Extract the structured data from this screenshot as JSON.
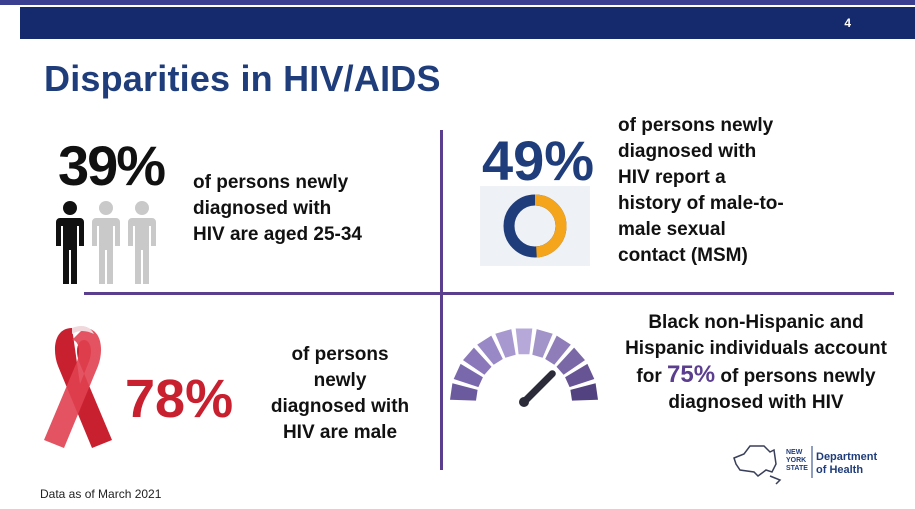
{
  "slide": {
    "number": "4",
    "title": "Disparities in HIV/AIDS"
  },
  "stat_age": {
    "percent": "39%",
    "text": "of persons newly\ndiagnosed with\nHIV are aged 25-34",
    "icon": "people-icon"
  },
  "stat_msm": {
    "percent": "49%",
    "text": "of persons newly\ndiagnosed with\nHIV report a\nhistory of male-to-\nmale sexual\ncontact (MSM)",
    "icon": "donut-chart-icon",
    "fraction": 0.49,
    "colors": {
      "filled": "#f4a51c",
      "rest": "#1f3d7a"
    }
  },
  "stat_male": {
    "percent": "78%",
    "text": "of persons\nnewly\ndiagnosed with\nHIV are male",
    "icon": "awareness-ribbon-icon"
  },
  "stat_race": {
    "line1": "Black non-Hispanic and",
    "line2": "Hispanic individuals account",
    "line3_pre": "for ",
    "line3_pct": "75%",
    "line3_post": " of persons newly",
    "line4": "diagnosed with HIV",
    "icon": "gauge-icon",
    "level": 0.75
  },
  "logo": {
    "state_line1": "NEW",
    "state_line2": "YORK",
    "state_line3": "STATE",
    "dept_line1": "Department",
    "dept_line2": "of Health"
  },
  "footnote": "Data as of March 2021",
  "colors": {
    "navy": "#142a6c",
    "title": "#1f3d7a",
    "purple": "#5b3f8e",
    "red": "#c8202f",
    "orange": "#f4a51c"
  }
}
